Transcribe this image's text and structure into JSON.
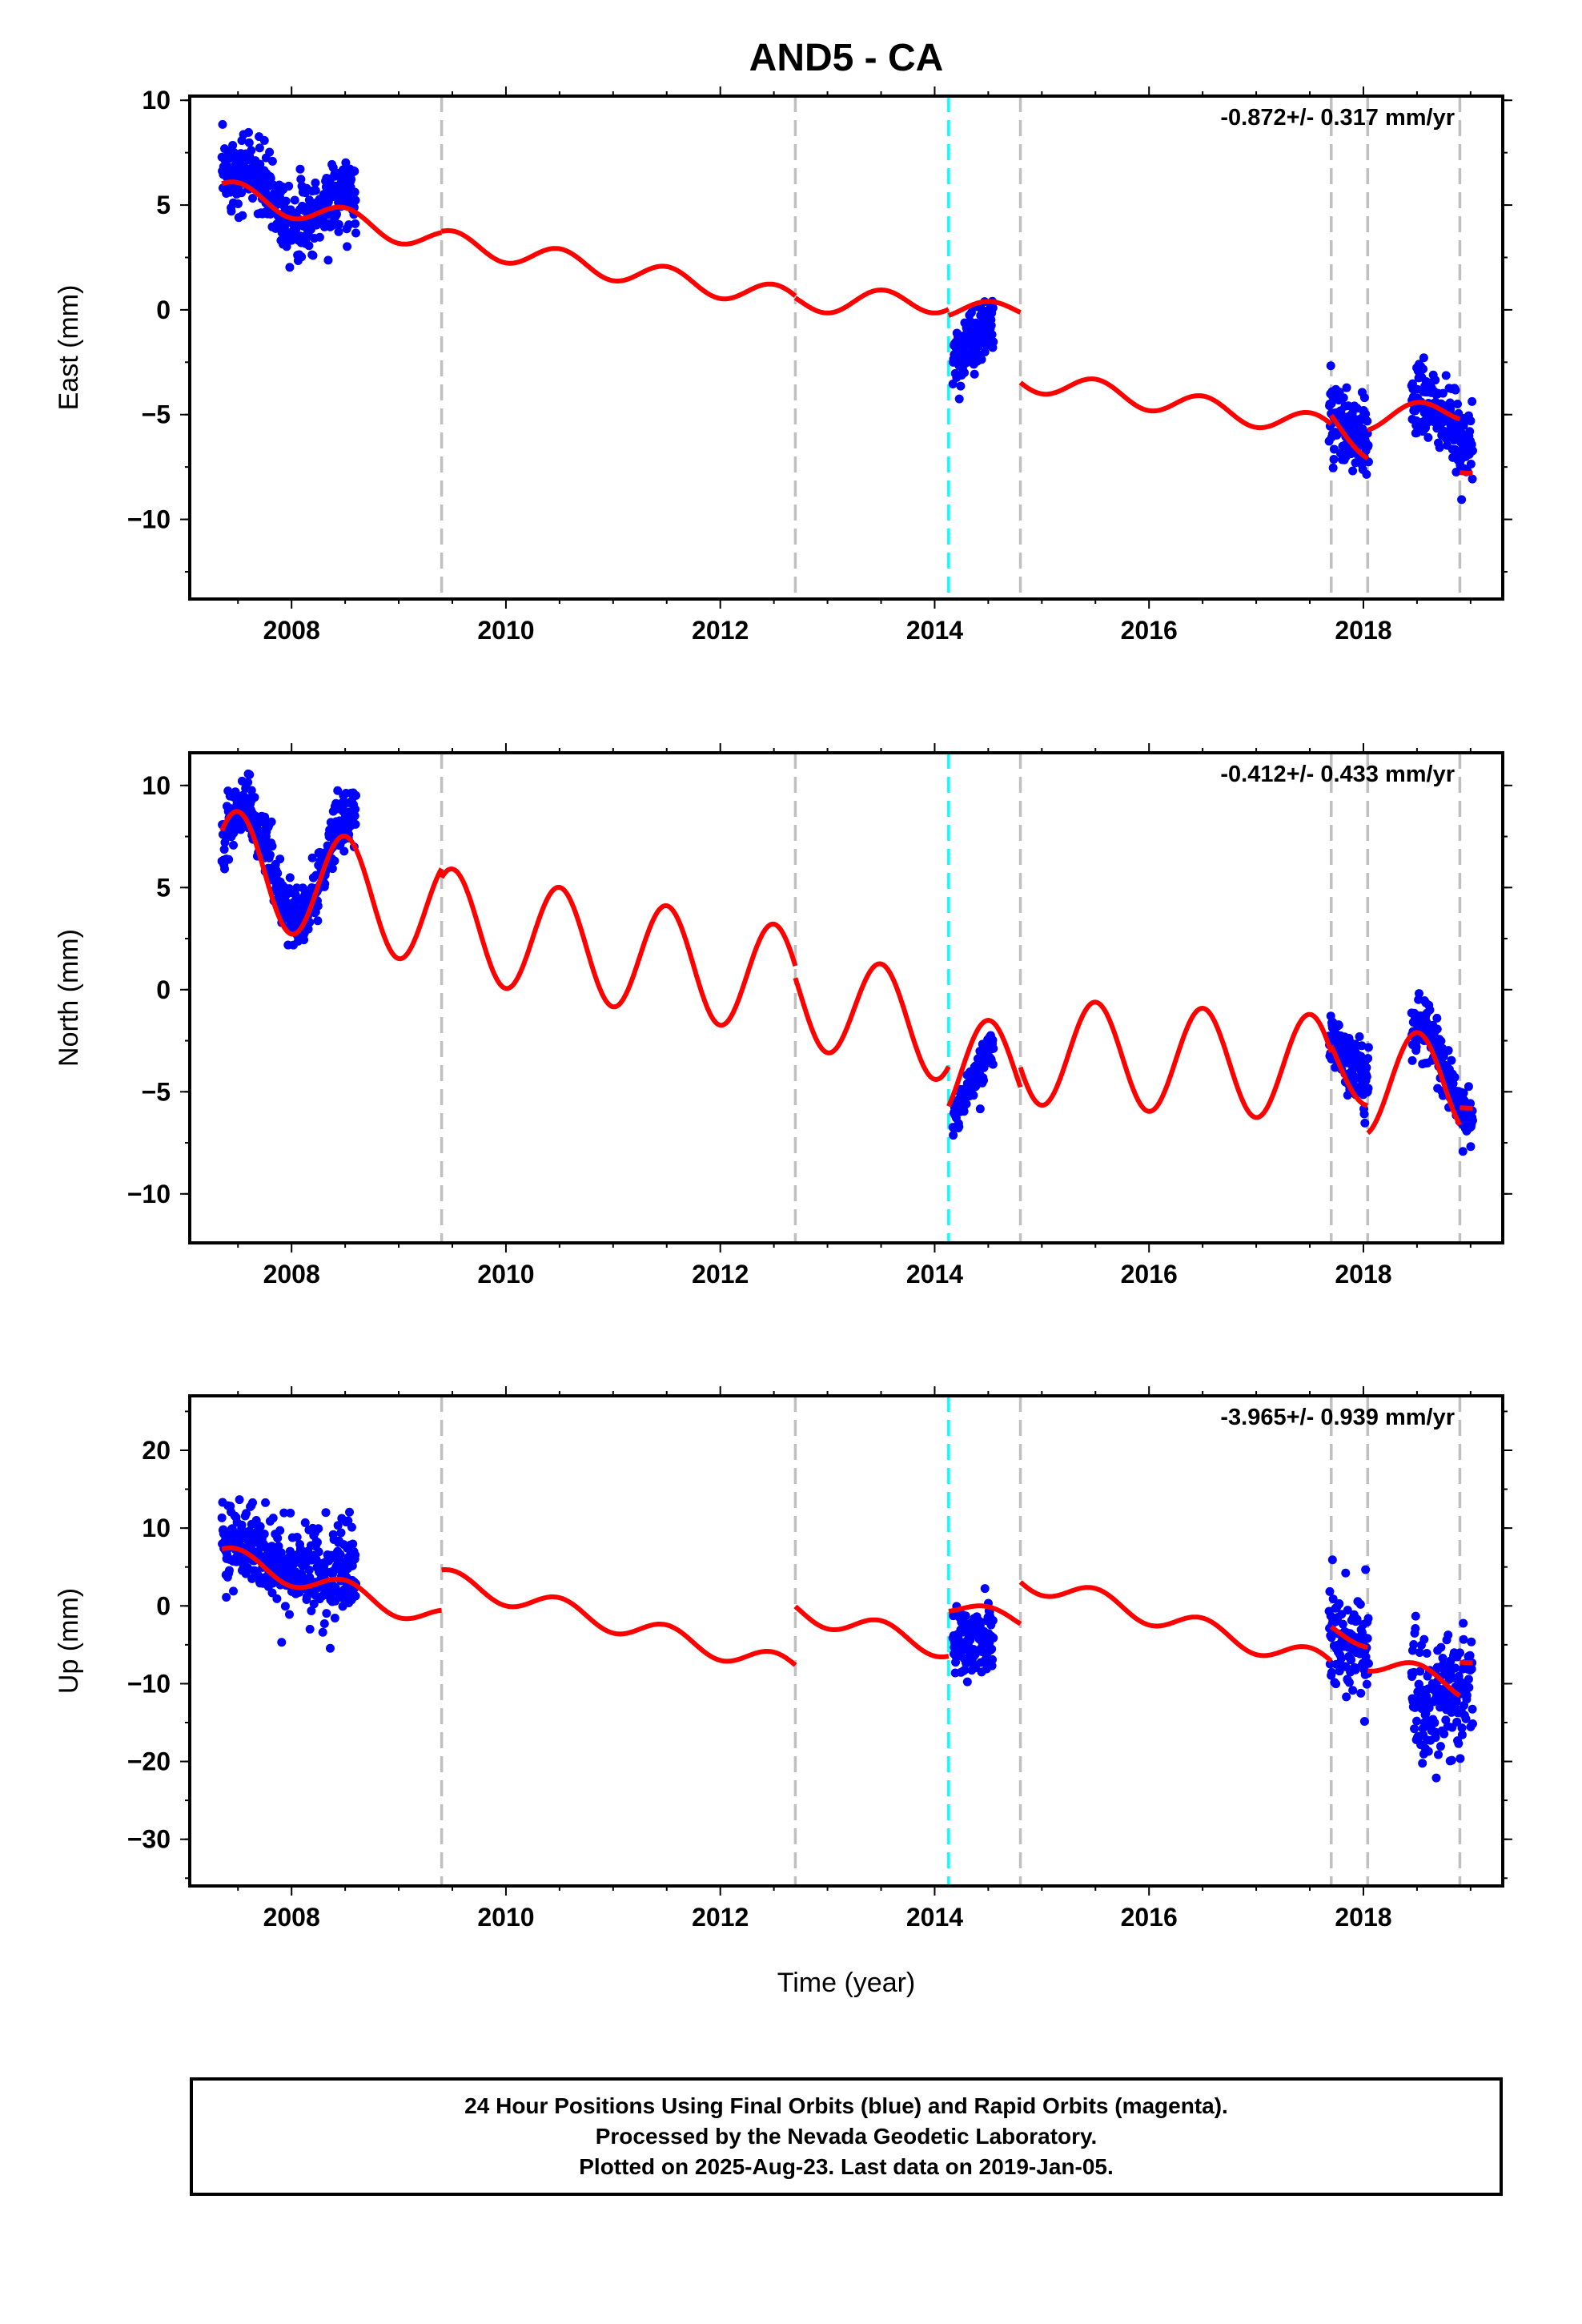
{
  "title": "AND5 - CA",
  "xlabel": "Time (year)",
  "caption": {
    "line1": "24 Hour Positions Using Final Orbits (blue) and Rapid Orbits (magenta).",
    "line2": "Processed by the Nevada Geodetic Laboratory.",
    "line3": "Plotted on 2025-Aug-23. Last data on 2019-Jan-05."
  },
  "colors": {
    "final_orbits": "#0000ff",
    "model": "#ff0000",
    "equipment_change": "#c0c0c0",
    "earthquake": "#00ffff"
  },
  "chart_data": [
    {
      "type": "scatter",
      "name": "east",
      "ylabel": "East (mm)",
      "rate": "-0.872+/- 0.317 mm/yr",
      "xlim": [
        2007.05,
        2019.3
      ],
      "ylim": [
        -13.8,
        10.2
      ],
      "xticks": [
        "2008",
        "2010",
        "2012",
        "2014",
        "2016",
        "2018"
      ],
      "yticks": [
        "10",
        "5",
        "0",
        "−5",
        "−10"
      ],
      "yticks_values": [
        10,
        5,
        0,
        -5,
        -10
      ],
      "dashed_lines": [
        2009.4,
        2012.7,
        2014.8,
        2017.7,
        2018.04,
        2018.9
      ],
      "event_lines": [
        2014.13
      ],
      "observations": [
        {
          "start": 2007.35,
          "end": 2008.6,
          "center": 5.3,
          "trend": -1.2,
          "amp": 0.9,
          "spread": 1.6
        },
        {
          "start": 2014.17,
          "end": 2014.55,
          "center": -1.5,
          "trend": 3.5,
          "amp": 0.2,
          "spread": 1.3
        },
        {
          "start": 2017.68,
          "end": 2018.05,
          "center": -5.8,
          "trend": -1.5,
          "amp": 0.3,
          "spread": 1.8
        },
        {
          "start": 2018.45,
          "end": 2019.02,
          "center": -5.3,
          "trend": -3.0,
          "amp": 0.4,
          "spread": 1.6
        }
      ],
      "model": [
        {
          "start": 2007.35,
          "end": 2009.4,
          "y0": 5.7,
          "slope": -1.2,
          "amp": 0.55
        },
        {
          "start": 2009.4,
          "end": 2012.7,
          "y0": 3.3,
          "slope": -0.85,
          "amp": 0.55
        },
        {
          "start": 2012.7,
          "end": 2014.13,
          "y0": 0.4,
          "slope": 0.0,
          "amp": 0.55
        },
        {
          "start": 2014.13,
          "end": 2014.8,
          "y0": 0.0,
          "slope": 0.0,
          "amp": 0.4
        },
        {
          "start": 2014.8,
          "end": 2017.7,
          "y0": -3.3,
          "slope": -0.8,
          "amp": 0.55
        },
        {
          "start": 2017.7,
          "end": 2018.04,
          "y0": -5.2,
          "slope": -4.0,
          "amp": 0.55
        },
        {
          "start": 2018.04,
          "end": 2018.9,
          "y0": -5.2,
          "slope": 0.5,
          "amp": 0.55
        },
        {
          "start": 2018.9,
          "end": 2019.02,
          "y0": -7.6,
          "slope": 0.0,
          "amp": 0.2
        }
      ]
    },
    {
      "type": "scatter",
      "name": "north",
      "ylabel": "North (mm)",
      "rate": "-0.412+/- 0.433 mm/yr",
      "xlim": [
        2007.05,
        2019.3
      ],
      "ylim": [
        -12.4,
        11.6
      ],
      "xticks": [
        "2008",
        "2010",
        "2012",
        "2014",
        "2016",
        "2018"
      ],
      "yticks": [
        "10",
        "5",
        "0",
        "−5",
        "−10"
      ],
      "yticks_values": [
        10,
        5,
        0,
        -5,
        -10
      ],
      "dashed_lines": [
        2009.4,
        2012.7,
        2014.8,
        2017.7,
        2018.04,
        2018.9
      ],
      "event_lines": [
        2014.13
      ],
      "observations": [
        {
          "start": 2007.35,
          "end": 2008.6,
          "center": 6.2,
          "trend": -0.2,
          "amp": 2.7,
          "spread": 1.3
        },
        {
          "start": 2014.17,
          "end": 2014.55,
          "center": -4.5,
          "trend": 9.0,
          "amp": 0.3,
          "spread": 0.9
        },
        {
          "start": 2017.68,
          "end": 2018.05,
          "center": -3.2,
          "trend": -4.0,
          "amp": 0.3,
          "spread": 1.4
        },
        {
          "start": 2018.45,
          "end": 2019.02,
          "center": -4.2,
          "trend": -2.0,
          "amp": 2.0,
          "spread": 1.3
        }
      ],
      "model": [
        {
          "start": 2007.35,
          "end": 2009.4,
          "y0": 6.2,
          "slope": -1.2,
          "amp": 2.7
        },
        {
          "start": 2009.4,
          "end": 2012.7,
          "y0": 3.3,
          "slope": -0.9,
          "amp": 2.7
        },
        {
          "start": 2012.7,
          "end": 2014.13,
          "y0": -0.2,
          "slope": -1.3,
          "amp": 2.5
        },
        {
          "start": 2014.13,
          "end": 2014.8,
          "y0": -4.0,
          "slope": 0.0,
          "amp": 2.5
        },
        {
          "start": 2014.8,
          "end": 2017.7,
          "y0": -3.0,
          "slope": -0.3,
          "amp": 2.6
        },
        {
          "start": 2017.7,
          "end": 2018.04,
          "y0": -3.2,
          "slope": -3.0,
          "amp": 1.5
        },
        {
          "start": 2018.04,
          "end": 2018.9,
          "y0": -4.6,
          "slope": 0.0,
          "amp": 2.5
        },
        {
          "start": 2018.9,
          "end": 2019.02,
          "y0": -5.7,
          "slope": 0.0,
          "amp": 0.1
        }
      ]
    },
    {
      "type": "scatter",
      "name": "up",
      "ylabel": "Up (mm)",
      "rate": "-3.965+/- 0.939 mm/yr",
      "xlim": [
        2007.05,
        2019.3
      ],
      "ylim": [
        -36,
        27
      ],
      "xticks": [
        "2008",
        "2010",
        "2012",
        "2014",
        "2016",
        "2018"
      ],
      "yticks": [
        "20",
        "10",
        "0",
        "−10",
        "−20",
        "−30"
      ],
      "yticks_values": [
        20,
        10,
        0,
        -10,
        -20,
        -30
      ],
      "dashed_lines": [
        2009.4,
        2012.7,
        2014.8,
        2017.7,
        2018.04,
        2018.9
      ],
      "event_lines": [
        2014.13
      ],
      "observations": [
        {
          "start": 2007.35,
          "end": 2008.6,
          "center": 5.5,
          "trend": -3.0,
          "amp": 1.0,
          "spread": 5.0
        },
        {
          "start": 2014.17,
          "end": 2014.55,
          "center": -4.0,
          "trend": 0.0,
          "amp": 0.5,
          "spread": 4.0
        },
        {
          "start": 2017.68,
          "end": 2018.05,
          "center": -4.5,
          "trend": -2.0,
          "amp": 0.5,
          "spread": 6.0
        },
        {
          "start": 2018.45,
          "end": 2019.02,
          "center": -11.0,
          "trend": 3.0,
          "amp": 0.5,
          "spread": 7.5
        }
      ],
      "model": [
        {
          "start": 2007.35,
          "end": 2009.4,
          "y0": 6.5,
          "slope": -4.0,
          "amp": 1.4
        },
        {
          "start": 2009.4,
          "end": 2012.7,
          "y0": 3.5,
          "slope": -3.5,
          "amp": 1.4
        },
        {
          "start": 2012.7,
          "end": 2014.13,
          "y0": -0.5,
          "slope": -3.5,
          "amp": 1.4
        },
        {
          "start": 2014.13,
          "end": 2014.8,
          "y0": 0.0,
          "slope": -3.0,
          "amp": 1.0
        },
        {
          "start": 2014.8,
          "end": 2017.7,
          "y0": 3.5,
          "slope": -3.8,
          "amp": 1.4
        },
        {
          "start": 2017.7,
          "end": 2018.04,
          "y0": -3.0,
          "slope": -4.0,
          "amp": 1.0
        },
        {
          "start": 2018.04,
          "end": 2018.9,
          "y0": -7.0,
          "slope": -4.0,
          "amp": 1.4
        },
        {
          "start": 2018.9,
          "end": 2019.02,
          "y0": -7.0,
          "slope": 0.0,
          "amp": 0.3
        }
      ]
    }
  ]
}
